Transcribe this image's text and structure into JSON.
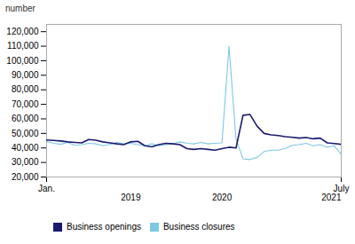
{
  "chart_data": {
    "type": "line",
    "ylabel": "number",
    "x": [
      0,
      1,
      2,
      3,
      4,
      5,
      6,
      7,
      8,
      9,
      10,
      11,
      12,
      13,
      14,
      15,
      16,
      17,
      18,
      19,
      20,
      21,
      22,
      23,
      24,
      25,
      26,
      27,
      28,
      29,
      30,
      31,
      32,
      33,
      34,
      35,
      36,
      37,
      38,
      39,
      40,
      41,
      42
    ],
    "xlim": [
      0,
      42
    ],
    "xticks": [
      {
        "value": 0,
        "label": "Jan."
      },
      {
        "value": 42,
        "label": "July"
      }
    ],
    "ylim": [
      20000,
      125000
    ],
    "yticks": [
      {
        "value": 20000,
        "label": "20,000"
      },
      {
        "value": 30000,
        "label": "30,000"
      },
      {
        "value": 40000,
        "label": "40,000"
      },
      {
        "value": 50000,
        "label": "50,000"
      },
      {
        "value": 60000,
        "label": "60,000"
      },
      {
        "value": 70000,
        "label": "70,000"
      },
      {
        "value": 80000,
        "label": "80,000"
      },
      {
        "value": 90000,
        "label": "90,000"
      },
      {
        "value": 100000,
        "label": "100,000"
      },
      {
        "value": 110000,
        "label": "110,000"
      },
      {
        "value": 120000,
        "label": "120,000"
      }
    ],
    "annotations": [
      {
        "text": "2019",
        "x": 12
      },
      {
        "text": "2020",
        "x": 25
      },
      {
        "text": "2021",
        "x": 42
      }
    ],
    "grid": false,
    "legend": "bottom",
    "series": [
      {
        "name": "Business openings",
        "color": "#1a1a6e",
        "values": [
          45500,
          45200,
          44800,
          44200,
          43800,
          43500,
          45800,
          45300,
          44200,
          43500,
          42800,
          42300,
          44200,
          44600,
          41500,
          40800,
          42300,
          43200,
          42800,
          42300,
          39500,
          39000,
          39500,
          39000,
          38500,
          39500,
          40500,
          40000,
          62500,
          63000,
          55000,
          50000,
          49000,
          48500,
          47800,
          47300,
          46800,
          47200,
          46300,
          46800,
          43500,
          43000,
          42500
        ]
      },
      {
        "name": "Business closures",
        "color": "#7ec8e3",
        "values": [
          44500,
          43200,
          42500,
          43800,
          41800,
          42300,
          43200,
          42800,
          41500,
          42300,
          43800,
          42800,
          43200,
          42300,
          41500,
          42800,
          41500,
          42300,
          42800,
          44200,
          43200,
          42800,
          43800,
          42800,
          43200,
          43500,
          110000,
          46000,
          32500,
          32000,
          33500,
          37500,
          38500,
          38500,
          39500,
          41800,
          42300,
          43200,
          41500,
          42300,
          40500,
          41500,
          35500
        ]
      }
    ]
  }
}
